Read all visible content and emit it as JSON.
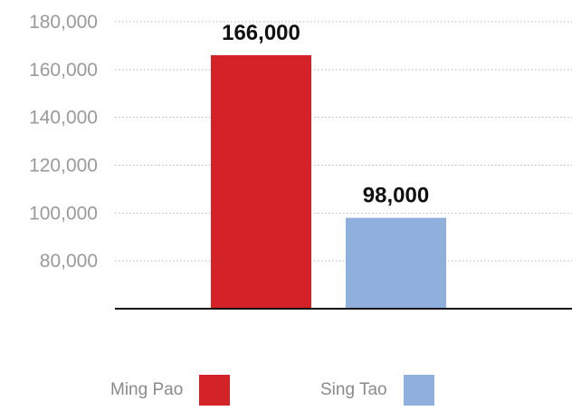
{
  "chart_data": {
    "type": "bar",
    "categories": [
      "Ming Pao",
      "Sing Tao"
    ],
    "values": [
      166000,
      98000
    ],
    "value_labels": [
      "166,000",
      "98,000"
    ],
    "series": [
      {
        "name": "Ming Pao",
        "color": "#d42229"
      },
      {
        "name": "Sing Tao",
        "color": "#8fb0dc"
      }
    ],
    "yticks": [
      80000,
      100000,
      120000,
      140000,
      160000,
      180000
    ],
    "ytick_labels": [
      "80,000",
      "100,000",
      "120,000",
      "140,000",
      "160,000",
      "180,000"
    ],
    "ylim": [
      60000,
      180000
    ],
    "grid": "dotted horizontal",
    "legend_position": "bottom",
    "title": "",
    "xlabel": "",
    "ylabel": ""
  },
  "legend": {
    "items": [
      {
        "label": "Ming Pao"
      },
      {
        "label": "Sing Tao"
      }
    ]
  }
}
